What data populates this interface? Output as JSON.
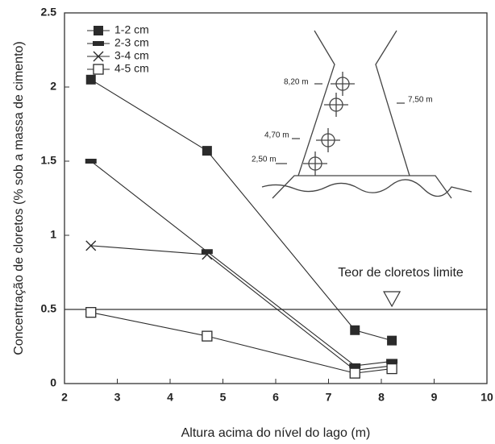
{
  "chart_data": {
    "type": "line",
    "x_label": "Altura acima do nível do lago (m)",
    "y_label": "Concentração de cloretos (% sob a massa de cimento)",
    "series": [
      {
        "name": "1-2 cm",
        "marker": "filled-square",
        "color": "#2b2b2b",
        "x": [
          2.5,
          4.7,
          7.5,
          8.2
        ],
        "values": [
          2.05,
          1.57,
          0.36,
          0.29
        ]
      },
      {
        "name": "2-3 cm",
        "marker": "bar",
        "color": "#2b2b2b",
        "x": [
          2.5,
          4.7,
          7.5,
          8.2
        ],
        "values": [
          1.5,
          0.89,
          0.12,
          0.15
        ]
      },
      {
        "name": "3-4 cm",
        "marker": "cross",
        "color": "#2b2b2b",
        "x": [
          2.5,
          4.7,
          7.5,
          8.2
        ],
        "values": [
          0.93,
          0.87,
          0.09,
          0.12
        ]
      },
      {
        "name": "4-5 cm",
        "marker": "open-square",
        "color": "#2b2b2b",
        "x": [
          2.5,
          4.7,
          7.5,
          8.2
        ],
        "values": [
          0.48,
          0.32,
          0.07,
          0.1
        ]
      }
    ],
    "limit": {
      "value": 0.5,
      "x": 8.2,
      "label": "Teor de cloretos limite"
    },
    "inset_labels": [
      "8,20 m",
      "7,50 m",
      "4,70 m",
      "2,50 m"
    ],
    "xlim": [
      2,
      10
    ],
    "xticks": [
      2,
      3,
      4,
      5,
      6,
      7,
      8,
      9,
      10
    ],
    "ylim": [
      0,
      2.5
    ],
    "yticks": [
      0,
      0.5,
      1,
      1.5,
      2,
      2.5
    ],
    "grid": false,
    "legend": "upper left"
  }
}
